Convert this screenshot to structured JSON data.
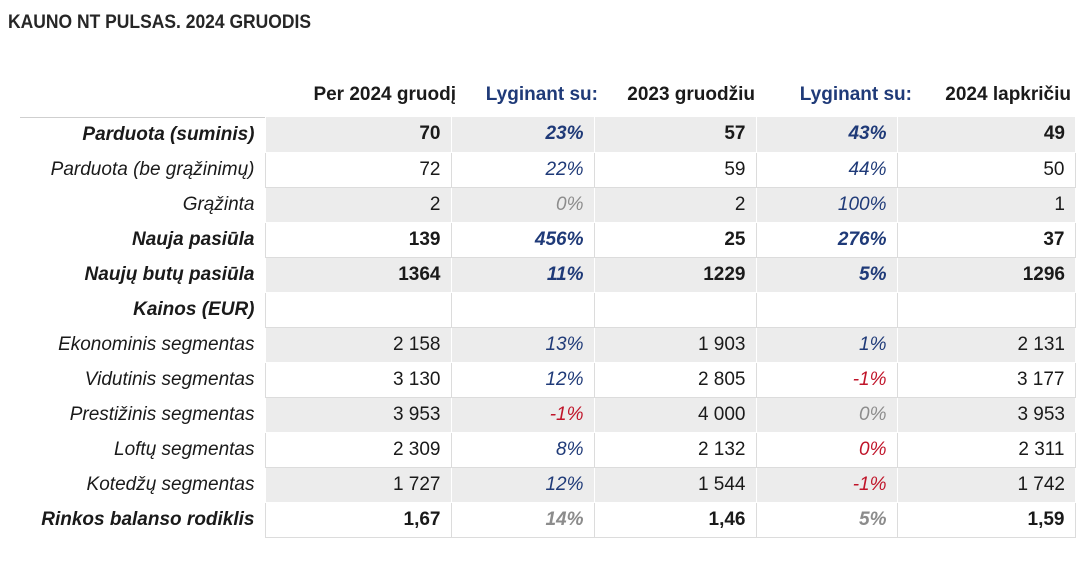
{
  "title": "KAUNO NT PULSAS. 2024 GRUODIS",
  "headers": [
    "Per 2024 gruodį",
    "Lyginant su:",
    "2023 gruodžiu",
    "Lyginant su:",
    "2024 lapkričiu"
  ],
  "colors": {
    "blue": "#1f3a78",
    "red": "#c0152a",
    "gray": "#8c8c8c",
    "shade": "#ececec"
  },
  "rows": [
    {
      "label": "Parduota (suminis)",
      "bold": true,
      "shade": true,
      "cur": "70",
      "p1": "23%",
      "c1": "blue",
      "prev_year": "57",
      "p2": "43%",
      "c2": "blue",
      "prev_month": "49"
    },
    {
      "label": "Parduota (be grąžinimų)",
      "bold": false,
      "shade": false,
      "cur": "72",
      "p1": "22%",
      "c1": "blue",
      "prev_year": "59",
      "p2": "44%",
      "c2": "blue",
      "prev_month": "50"
    },
    {
      "label": "Grąžinta",
      "bold": false,
      "shade": true,
      "cur": "2",
      "p1": "0%",
      "c1": "gray",
      "prev_year": "2",
      "p2": "100%",
      "c2": "blue",
      "prev_month": "1"
    },
    {
      "label": "Nauja pasiūla",
      "bold": true,
      "shade": false,
      "cur": "139",
      "p1": "456%",
      "c1": "blue",
      "prev_year": "25",
      "p2": "276%",
      "c2": "blue",
      "prev_month": "37"
    },
    {
      "label": "Naujų butų pasiūla",
      "bold": true,
      "shade": true,
      "cur": "1364",
      "p1": "11%",
      "c1": "blue",
      "prev_year": "1229",
      "p2": "5%",
      "c2": "blue",
      "prev_month": "1296"
    },
    {
      "label": "Kainos (EUR)",
      "bold": true,
      "shade": false,
      "cur": "",
      "p1": "",
      "c1": "blue",
      "prev_year": "",
      "p2": "",
      "c2": "blue",
      "prev_month": ""
    },
    {
      "label": "Ekonominis segmentas",
      "bold": false,
      "shade": true,
      "cur": "2 158",
      "p1": "13%",
      "c1": "blue",
      "prev_year": "1 903",
      "p2": "1%",
      "c2": "blue",
      "prev_month": "2 131"
    },
    {
      "label": "Vidutinis segmentas",
      "bold": false,
      "shade": false,
      "cur": "3 130",
      "p1": "12%",
      "c1": "blue",
      "prev_year": "2 805",
      "p2": "-1%",
      "c2": "red",
      "prev_month": "3 177"
    },
    {
      "label": "Prestižinis segmentas",
      "bold": false,
      "shade": true,
      "cur": "3 953",
      "p1": "-1%",
      "c1": "red",
      "prev_year": "4 000",
      "p2": "0%",
      "c2": "gray",
      "prev_month": "3 953"
    },
    {
      "label": "Loftų segmentas",
      "bold": false,
      "shade": false,
      "cur": "2 309",
      "p1": "8%",
      "c1": "blue",
      "prev_year": "2 132",
      "p2": "0%",
      "c2": "red",
      "prev_month": "2 311"
    },
    {
      "label": "Kotedžų segmentas",
      "bold": false,
      "shade": true,
      "cur": "1 727",
      "p1": "12%",
      "c1": "blue",
      "prev_year": "1 544",
      "p2": "-1%",
      "c2": "red",
      "prev_month": "1 742"
    },
    {
      "label": "Rinkos balanso rodiklis",
      "bold": true,
      "shade": false,
      "cur": "1,67",
      "p1": "14%",
      "c1": "gray",
      "prev_year": "1,46",
      "p2": "5%",
      "c2": "gray",
      "prev_month": "1,59"
    }
  ]
}
